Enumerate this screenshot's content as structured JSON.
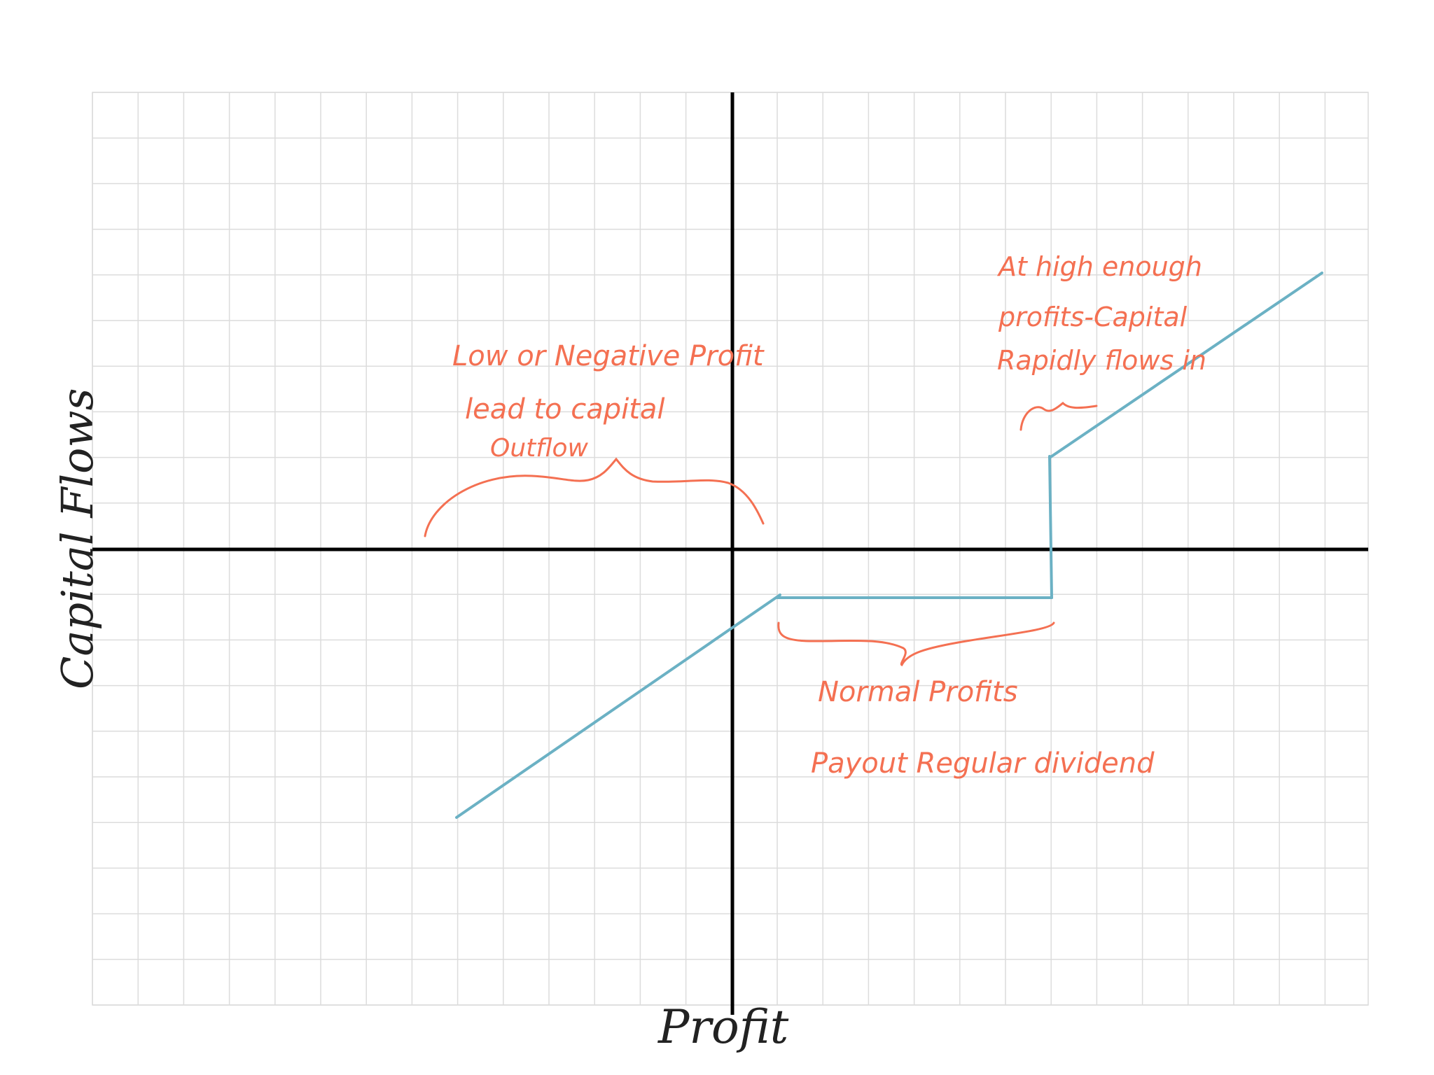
{
  "colors": {
    "background": "#ffffff",
    "grid": "#dcdcdc",
    "axes": "#000000",
    "curve": "#6bb1c4",
    "annotation": "#f47052",
    "label": "#222222"
  },
  "axes": {
    "x_label": "Profit",
    "y_label": "Capital   Flows"
  },
  "annotations": {
    "left_note": {
      "line1": "Low or Negative Profit",
      "line2": "lead to capital",
      "line3": "Outflow"
    },
    "middle_note": {
      "line1": "Normal Profits",
      "line2": "Payout Regular dividend"
    },
    "right_note": {
      "line1": "At high enough",
      "line2": "profits-Capital",
      "line3": "Rapidly flows in"
    }
  }
}
